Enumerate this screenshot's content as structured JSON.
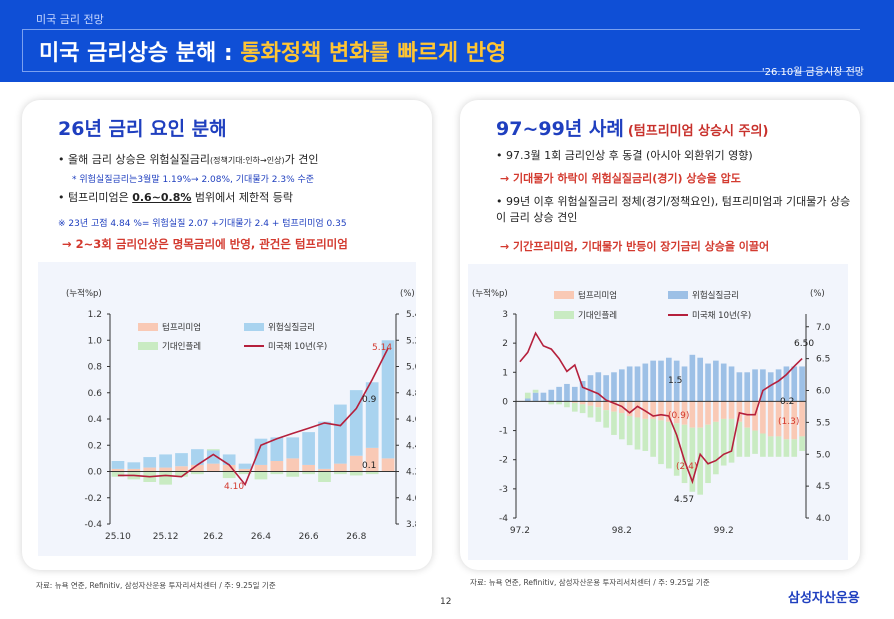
{
  "header": {
    "kicker": "미국 금리 전망",
    "title_main": "미국 금리상승 분해 : ",
    "title_accent": "통화정책 변화를 빠르게 반영",
    "date_tag": "'26.10월 금융시장 전망"
  },
  "left": {
    "title": "26년 금리 요인 분해",
    "b1": "• 올해 금리 상승은 위험실질금리",
    "b1_small": "(정책기대:인하→인상)",
    "b1_end": "가 견인",
    "b1_note": "* 위험실질금리는3월말 1.19%→ 2.08%,  기대물가  2.3% 수준",
    "b2_pre": "• 텀프리미엄은 ",
    "b2_ul": "0.6~0.8%",
    "b2_post": " 범위에서 제한적 등락",
    "b2_note": "※ 23년 고점 4.84 %= 위험실질 2.07 +기대물가 2.4 + 텀프리미엄 0.35",
    "arrow": "→ 2~3회 금리인상은 명목금리에 반영, 관건은 텀프리미엄",
    "source": "자료: 뉴욕 연준, Refinitiv, 삼성자산운용 투자리서치센터 / 주: 9.25일 기준"
  },
  "right": {
    "title": "97~99년 사례",
    "title_sub": "(텀프리미엄 상승시 주의)",
    "b1": "• 97.3월 1회 금리인상 후 동결 (아시아 외환위기 영향)",
    "a1": "→ 기대물가 하락이 위험실질금리(경기) 상승을 압도",
    "b2": "• 99년 이후 위험실질금리 정체(경기/정책요인), 텀프리미엄과 기대물가 상승이 금리 상승 견인",
    "a2": "→ 기간프리미엄, 기대물가 반등이 장기금리 상승을 이끌어",
    "source": "자료: 뉴욕 연준, Refinitiv, 삼성자산운용 투자리서치센터 / 주: 9.25일 기준"
  },
  "page_number": "12",
  "logo": "삼성자산운용",
  "colors": {
    "header_bg": "#0f4fd6",
    "accent": "#ffc533",
    "title_blue": "#1f3fbf",
    "red": "#d33a2f",
    "term": "#f9c9b5",
    "risk": "#a9d3ef",
    "infl": "#c9ebc2",
    "yield": "#b5203c",
    "risk_right": "#9dc0e6"
  },
  "chart_data": [
    {
      "type": "bar",
      "stacked": true,
      "left_axis_label": "(누적%p)",
      "right_axis_label": "(%)",
      "ylim": [
        -0.4,
        1.2
      ],
      "yticks": [
        "1.2",
        "1.0",
        "0.8",
        "0.6",
        "0.4",
        "0.2",
        "0.0",
        "-0.2",
        "-0.4"
      ],
      "y2lim": [
        3.8,
        5.4
      ],
      "y2ticks": [
        "5.4",
        "5.2",
        "5.0",
        "4.8",
        "4.6",
        "4.4",
        "4.2",
        "4.0",
        "3.8"
      ],
      "xticks": [
        {
          "i": 0,
          "label": "25.10"
        },
        {
          "i": 3,
          "label": "25.12"
        },
        {
          "i": 6,
          "label": "26.2"
        },
        {
          "i": 9,
          "label": "26.4"
        },
        {
          "i": 12,
          "label": "26.6"
        },
        {
          "i": 15,
          "label": "26.8"
        }
      ],
      "n": 18,
      "legend": [
        "텀프리미엄",
        "위험실질금리",
        "기대인플레",
        "미국채 10년(우)"
      ],
      "series": [
        {
          "name": "텀프리미엄",
          "values": [
            0.02,
            0.02,
            0.03,
            0.03,
            0.04,
            0.05,
            0.06,
            0.05,
            0.02,
            0.05,
            0.08,
            0.1,
            0.05,
            0.02,
            0.06,
            0.12,
            0.18,
            0.1
          ]
        },
        {
          "name": "위험실질금리",
          "values": [
            0.06,
            0.05,
            0.08,
            0.1,
            0.1,
            0.12,
            0.1,
            0.08,
            0.04,
            0.2,
            0.18,
            0.16,
            0.25,
            0.36,
            0.45,
            0.5,
            0.5,
            0.9
          ]
        },
        {
          "name": "기대인플레",
          "values": [
            -0.04,
            -0.06,
            -0.08,
            -0.1,
            -0.04,
            -0.02,
            0.01,
            -0.05,
            -0.02,
            -0.06,
            -0.02,
            -0.04,
            -0.02,
            -0.08,
            -0.02,
            -0.03,
            -0.02,
            0.0
          ]
        }
      ],
      "line": {
        "name": "미국채 10년(우)",
        "values": [
          4.17,
          4.17,
          4.16,
          4.17,
          4.16,
          4.25,
          4.33,
          4.25,
          4.1,
          4.4,
          4.45,
          4.49,
          4.53,
          4.57,
          4.55,
          4.68,
          4.9,
          5.14
        ]
      },
      "annotations": [
        "5.14",
        "0.9",
        "0.1",
        "4.10"
      ]
    },
    {
      "type": "bar",
      "stacked": true,
      "left_axis_label": "(누적%p)",
      "right_axis_label": "(%)",
      "ylim": [
        -4,
        3
      ],
      "yticks": [
        "3",
        "2",
        "1",
        "0",
        "-1",
        "-2",
        "-3",
        "-4"
      ],
      "y2lim": [
        4.0,
        7.2
      ],
      "y2ticks": [
        "7.0",
        "6.5",
        "6.0",
        "5.5",
        "5.0",
        "4.5",
        "4.0"
      ],
      "xticks": [
        {
          "i": 0,
          "label": "97.2"
        },
        {
          "i": 13,
          "label": "98.2"
        },
        {
          "i": 26,
          "label": "99.2"
        }
      ],
      "n": 37,
      "legend": [
        "텀프리미엄",
        "위험실질금리",
        "기대인플레",
        "미국채 10년(우)"
      ],
      "series": [
        {
          "name": "텀프리미엄",
          "values": [
            0,
            0,
            0,
            0,
            0,
            0,
            0,
            -0.05,
            -0.1,
            -0.15,
            -0.2,
            -0.3,
            -0.35,
            -0.4,
            -0.5,
            -0.55,
            -0.6,
            -0.6,
            -0.65,
            -0.7,
            -0.75,
            -0.8,
            -0.9,
            -0.9,
            -0.8,
            -0.7,
            -0.6,
            -0.6,
            -0.7,
            -0.9,
            -1.0,
            -1.1,
            -1.2,
            -1.2,
            -1.3,
            -1.3,
            -1.2
          ]
        },
        {
          "name": "위험실질금리",
          "values": [
            0,
            0.1,
            0.3,
            0.3,
            0.4,
            0.5,
            0.6,
            0.5,
            0.7,
            0.9,
            1.0,
            0.9,
            1.0,
            1.1,
            1.2,
            1.2,
            1.3,
            1.4,
            1.4,
            1.5,
            1.4,
            1.2,
            1.6,
            1.5,
            1.3,
            1.4,
            1.3,
            1.2,
            1.0,
            1.0,
            1.1,
            1.1,
            1.0,
            1.1,
            1.2,
            1.2,
            1.2
          ]
        },
        {
          "name": "기대인플레",
          "values": [
            0,
            0.2,
            0.1,
            0,
            -0.1,
            -0.1,
            -0.2,
            -0.3,
            -0.3,
            -0.4,
            -0.5,
            -0.6,
            -0.8,
            -0.9,
            -1.0,
            -1.1,
            -1.1,
            -1.3,
            -1.5,
            -1.6,
            -1.8,
            -2.0,
            -2.2,
            -2.3,
            -2.0,
            -1.8,
            -1.6,
            -1.5,
            -1.2,
            -1.0,
            -0.8,
            -0.8,
            -0.7,
            -0.7,
            -0.6,
            -0.6,
            -0.5
          ]
        }
      ],
      "line": {
        "name": "미국채 10년(우)",
        "values": [
          6.45,
          6.6,
          6.9,
          6.7,
          6.65,
          6.5,
          6.3,
          6.4,
          6.05,
          6.0,
          5.95,
          5.85,
          5.8,
          5.75,
          5.65,
          5.75,
          5.68,
          5.6,
          5.62,
          5.6,
          5.3,
          4.9,
          4.57,
          5.0,
          4.85,
          4.9,
          5.0,
          5.05,
          5.65,
          5.62,
          5.62,
          6.0,
          6.08,
          6.15,
          6.25,
          6.38,
          6.5
        ]
      },
      "annotations": [
        "6.50",
        "1.5",
        "0.2",
        "(0.9)",
        "(1.3)",
        "(2.4)",
        "4.57"
      ]
    }
  ]
}
